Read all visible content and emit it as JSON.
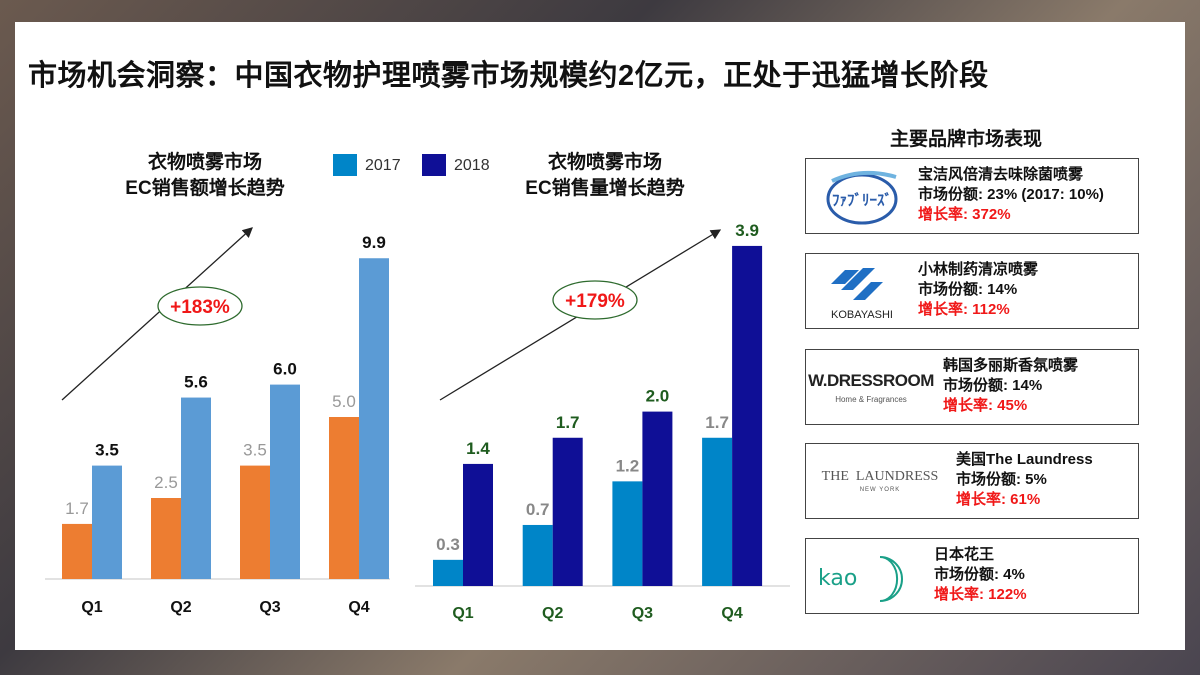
{
  "title": "市场机会洞察：中国衣物护理喷雾市场规模约2亿元，正处于迅猛增长阶段",
  "legend": [
    {
      "label": "2017",
      "color": "#0085C8"
    },
    {
      "label": "2018",
      "color": "#0F0F96"
    }
  ],
  "chart_data": [
    {
      "type": "bar",
      "title": "衣物喷雾市场\nEC销售额增长趋势",
      "title_line1": "衣物喷雾市场",
      "title_line2": "EC销售额增长趋势",
      "categories": [
        "Q1",
        "Q2",
        "Q3",
        "Q4"
      ],
      "series": [
        {
          "name": "2017",
          "color": "#ED7D31",
          "values": [
            1.7,
            2.5,
            3.5,
            5.0
          ],
          "labels": [
            "1.7",
            "2.5",
            "3.5",
            "5.0"
          ]
        },
        {
          "name": "2018",
          "color": "#5B9BD5",
          "values": [
            3.5,
            5.6,
            6.0,
            9.9
          ],
          "labels": [
            "3.5",
            "5.6",
            "6.0",
            "9.9"
          ]
        }
      ],
      "annotation": "+183%",
      "grid": false
    },
    {
      "type": "bar",
      "title": "衣物喷雾市场\nEC销售量增长趋势",
      "title_line1": "衣物喷雾市场",
      "title_line2": "EC销售量增长趋势",
      "categories": [
        "Q1",
        "Q2",
        "Q3",
        "Q4"
      ],
      "series": [
        {
          "name": "2017",
          "color": "#0085C8",
          "values": [
            0.3,
            0.7,
            1.2,
            1.7
          ],
          "labels": [
            "0.3",
            "0.7",
            "1.2",
            "1.7"
          ]
        },
        {
          "name": "2018",
          "color": "#0F0F96",
          "values": [
            1.4,
            1.7,
            2.0,
            3.9
          ],
          "labels": [
            "1.4",
            "1.7",
            "2.0",
            "3.9"
          ]
        }
      ],
      "annotation": "+179%",
      "grid": false
    }
  ],
  "brands": {
    "heading": "主要品牌市场表现",
    "items": [
      {
        "logo": "FEBREZE",
        "name": "宝洁风倍清去味除菌喷雾",
        "share": "市场份额:  23% (2017: 10%)",
        "growth": "增长率: 372%"
      },
      {
        "logo": "KOBAYASHI",
        "name": "小林制药清凉喷雾",
        "share": "市场份额:  14%",
        "growth": "增长率: 112%"
      },
      {
        "logo": "W.DRESSROOM",
        "logo_sub": "Home & Fragrances",
        "name": "韩国多丽斯香氛喷雾",
        "share": "市场份额:  14%",
        "growth": "增长率: 45%"
      },
      {
        "logo": "THE  LAUNDRESS",
        "logo_sub": "NEW YORK",
        "name": "美国The Laundress",
        "share": "市场份额:  5%",
        "growth": "增长率: 61%"
      },
      {
        "logo": "kao",
        "name": "日本花王",
        "share": "市场份额:  4%",
        "growth": "增长率: 122%"
      }
    ]
  }
}
